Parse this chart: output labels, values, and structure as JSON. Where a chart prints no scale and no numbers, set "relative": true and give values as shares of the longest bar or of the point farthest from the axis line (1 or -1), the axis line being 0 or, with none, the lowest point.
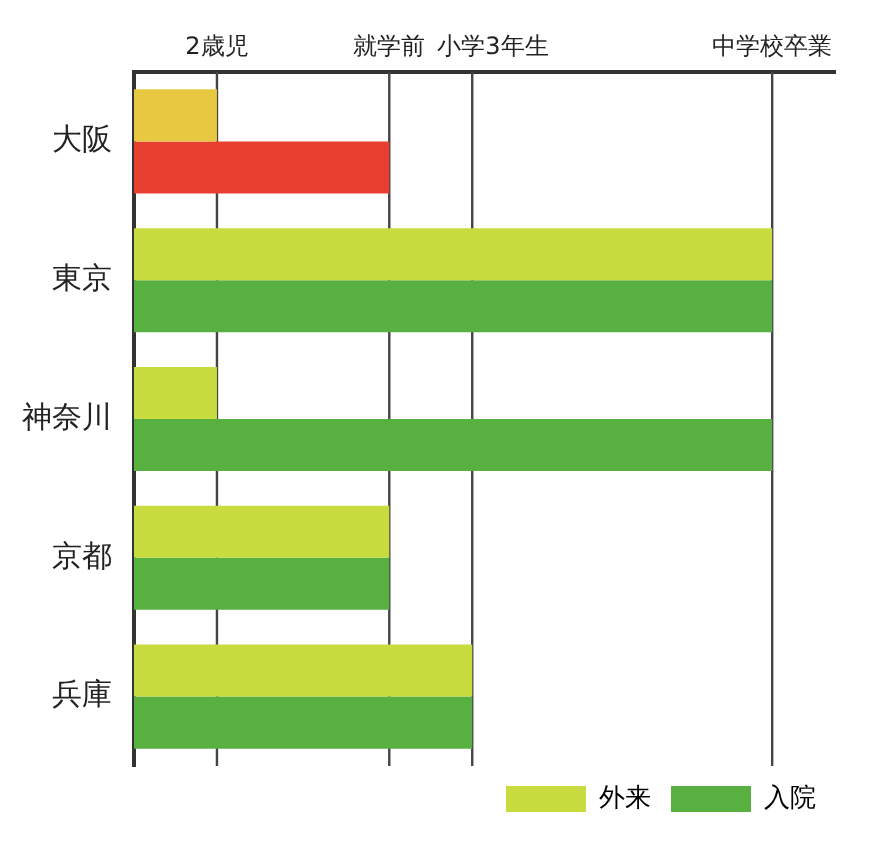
{
  "chart_data": {
    "type": "bar",
    "orientation": "horizontal",
    "relative": true,
    "categories": [
      "大阪",
      "東京",
      "神奈川",
      "京都",
      "兵庫"
    ],
    "series": [
      {
        "name": "外来",
        "color": "#c8dc40",
        "colors": [
          "#e8c840",
          "#c8dc40",
          "#c8dc40",
          "#c8dc40",
          "#c8dc40"
        ],
        "values": [
          0.13,
          1,
          0.13,
          0.4,
          0.53
        ]
      },
      {
        "name": "入院",
        "color": "#58b040",
        "colors": [
          "#e84030",
          "#58b040",
          "#58b040",
          "#58b040",
          "#58b040"
        ],
        "values": [
          0.4,
          1,
          1,
          0.4,
          0.53
        ]
      }
    ],
    "ref_lines": [
      {
        "axis": "x",
        "value": 0.13,
        "label": "2歳児"
      },
      {
        "axis": "x",
        "value": 0.4,
        "label": "就学前"
      },
      {
        "axis": "x",
        "value": 0.53,
        "label": "小学3年生"
      },
      {
        "axis": "x",
        "value": 1,
        "label": "中学校卒業"
      }
    ],
    "legend": "bottom right"
  }
}
